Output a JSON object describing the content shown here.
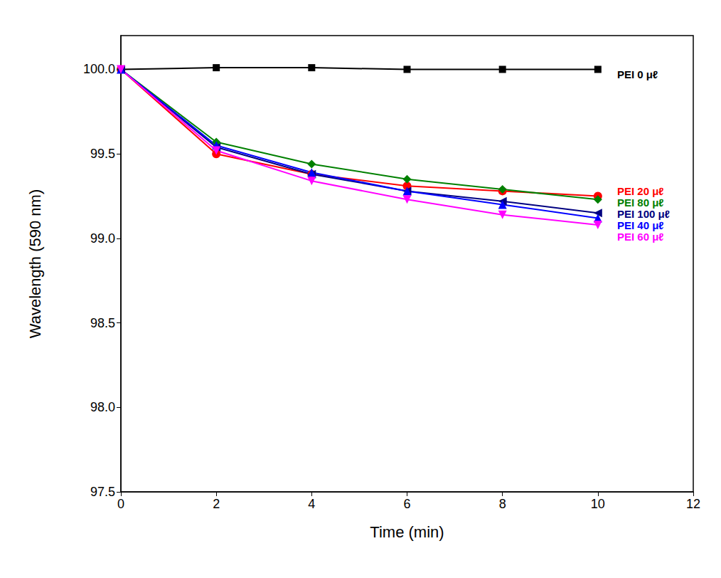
{
  "chart_data": {
    "type": "line",
    "x_label": "Time (min)",
    "y_label": "Wavelength (590 nm)",
    "x": [
      0,
      2,
      4,
      6,
      8,
      10
    ],
    "xlim": [
      0,
      12
    ],
    "xticks": [
      0,
      2,
      4,
      6,
      8,
      10,
      12
    ],
    "ylim": [
      97.5,
      100.2
    ],
    "yticks": [
      97.5,
      {
        "value": 98,
        "label": "98.0"
      },
      98.5,
      {
        "value": 99,
        "label": "99.0"
      },
      99.5,
      {
        "value": 100,
        "label": "100.0"
      }
    ],
    "grid": false,
    "legend": "right",
    "series": [
      {
        "name": "PEI 0 μℓ",
        "color": "#000000",
        "marker": "square",
        "values": [
          100.0,
          100.01,
          100.01,
          100.0,
          100.0,
          100.0
        ]
      },
      {
        "name": "PEI 20 μℓ",
        "color": "#ff0000",
        "marker": "circle",
        "values": [
          100.0,
          99.5,
          99.38,
          99.31,
          99.28,
          99.25
        ]
      },
      {
        "name": "PEI 80 μℓ",
        "color": "#008000",
        "marker": "diamond",
        "values": [
          100.0,
          99.57,
          99.44,
          99.35,
          99.29,
          99.23
        ]
      },
      {
        "name": "PEI 100 μℓ",
        "color": "#000080",
        "marker": "triangle-left",
        "values": [
          100.0,
          99.54,
          99.38,
          99.28,
          99.22,
          99.15
        ]
      },
      {
        "name": "PEI 40 μℓ",
        "color": "#0000ff",
        "marker": "triangle-up",
        "values": [
          100.0,
          99.55,
          99.39,
          99.28,
          99.2,
          99.12
        ]
      },
      {
        "name": "PEI 60 μℓ",
        "color": "#ff00ff",
        "marker": "triangle-down",
        "values": [
          100.0,
          99.52,
          99.34,
          99.23,
          99.14,
          99.08
        ]
      }
    ]
  }
}
